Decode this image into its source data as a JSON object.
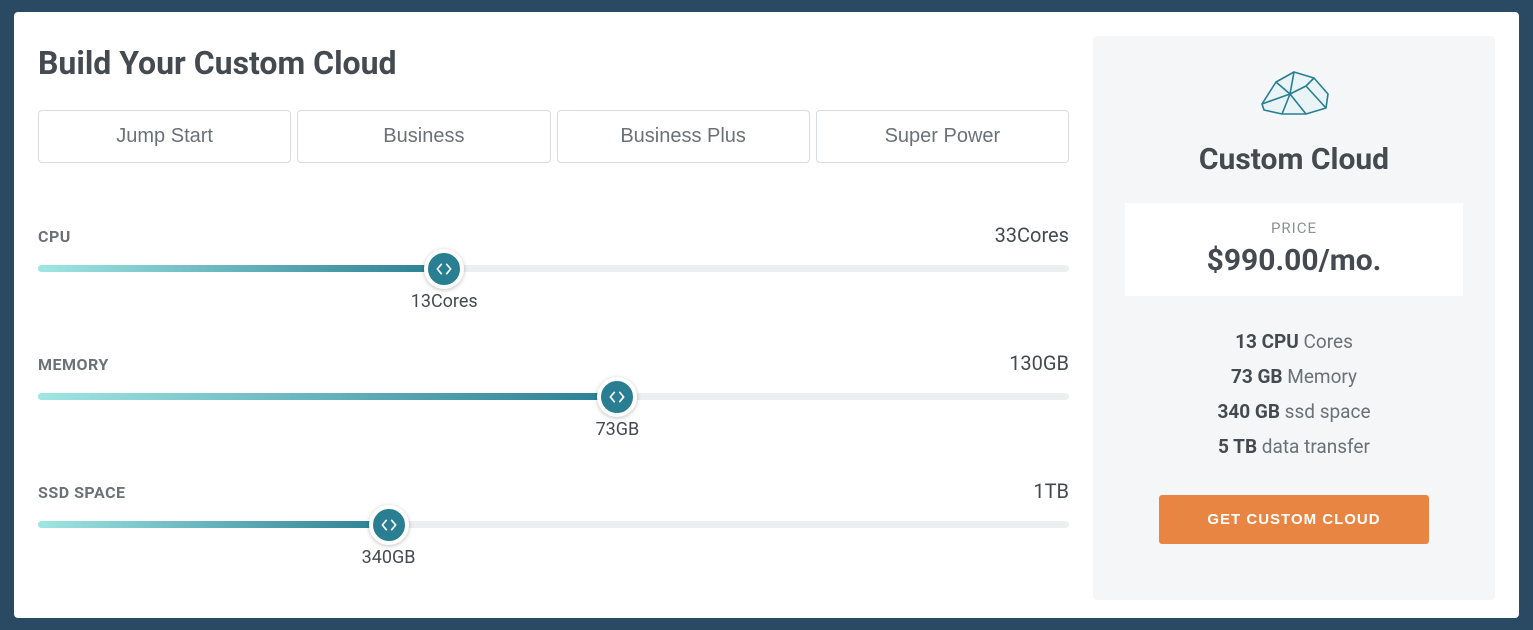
{
  "colors": {
    "page_bg": "#2a4a63",
    "card_bg": "#ffffff",
    "panel_bg": "#f4f6f7",
    "text_dark": "#444a50",
    "text_muted": "#6b7177",
    "text_light": "#8a9097",
    "track_bg": "#eceeef",
    "fill_gradient_start": "#9fe6e3",
    "fill_gradient_end": "#2a7e92",
    "handle_bg": "#2a7e92",
    "cta_bg": "#e98543",
    "border": "#d8dcdf"
  },
  "title": "Build Your Custom Cloud",
  "tabs": [
    {
      "label": "Jump Start"
    },
    {
      "label": "Business"
    },
    {
      "label": "Business Plus"
    },
    {
      "label": "Super Power"
    }
  ],
  "sliders": {
    "cpu": {
      "label": "CPU",
      "max_label": "33Cores",
      "value_label": "13Cores",
      "percent": 39.4
    },
    "memory": {
      "label": "MEMORY",
      "max_label": "130GB",
      "value_label": "73GB",
      "percent": 56.2
    },
    "ssd": {
      "label": "SSD SPACE",
      "max_label": "1TB",
      "value_label": "340GB",
      "percent": 34.0
    }
  },
  "panel": {
    "title": "Custom Cloud",
    "price_label": "PRICE",
    "price_value": "$990.00/mo.",
    "specs": [
      {
        "strong": "13 CPU",
        "rest": " Cores"
      },
      {
        "strong": "73 GB",
        "rest": " Memory"
      },
      {
        "strong": "340 GB",
        "rest": " ssd space"
      },
      {
        "strong": "5 TB",
        "rest": " data transfer"
      }
    ],
    "cta_label": "GET CUSTOM CLOUD"
  }
}
